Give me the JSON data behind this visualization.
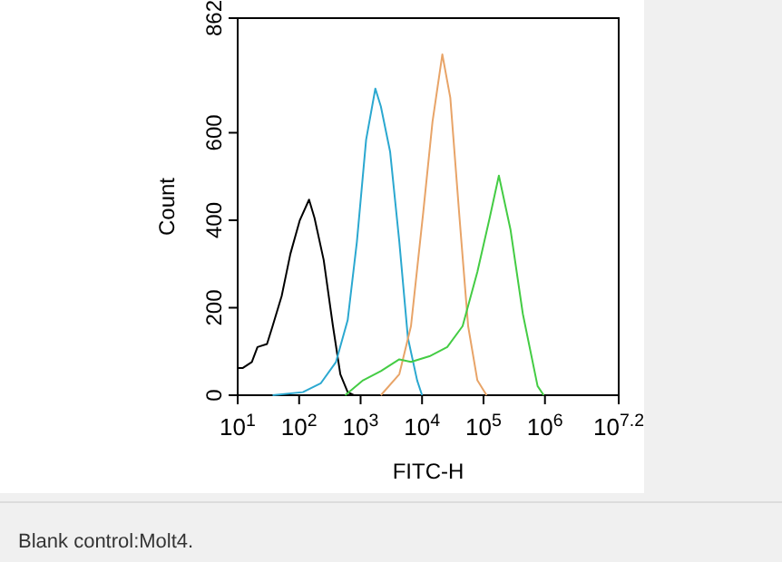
{
  "chart_data": {
    "type": "line",
    "xlabel": "FITC-H",
    "ylabel": "Count",
    "log": "x",
    "grid": false,
    "marker": "none",
    "line_style": "solid",
    "xlim": [
      10,
      15848932
    ],
    "xticks": [
      {
        "value": 10,
        "label": "10$^{1}$"
      },
      {
        "value": 100,
        "label": "10$^{2}$"
      },
      {
        "value": 1000,
        "label": "10$^{3}$"
      },
      {
        "value": 10000,
        "label": "10$^{4}$"
      },
      {
        "value": 100000,
        "label": "10$^{5}$"
      },
      {
        "value": 1000000,
        "label": "10$^{6}$"
      },
      {
        "value": 15848932,
        "label": "10$^{7.2}$"
      }
    ],
    "ylim": [
      0,
      862
    ],
    "yticks": [
      0,
      200,
      400,
      600,
      862
    ],
    "series": [
      {
        "color": "#000000",
        "x": [
          10,
          12,
          17,
          21,
          30,
          37,
          52,
          72,
          102,
          145,
          178,
          251,
          355,
          468,
          617,
          776
        ],
        "values": [
          62,
          62,
          76,
          110,
          117,
          158,
          227,
          323,
          399,
          447,
          405,
          309,
          158,
          48,
          7,
          0
        ]
      },
      {
        "color": "#2ba8d0",
        "x": [
          37,
          115,
          224,
          398,
          617,
          871,
          1230,
          1738,
          2138,
          3020,
          4266,
          5888,
          8318,
          10000
        ],
        "values": [
          0,
          7,
          27,
          76,
          172,
          351,
          584,
          701,
          660,
          557,
          351,
          131,
          34,
          0
        ]
      },
      {
        "color": "#e8a468",
        "x": [
          2138,
          4266,
          6607,
          10471,
          14791,
          21380,
          28840,
          40738,
          56234,
          79433,
          112202
        ],
        "values": [
          0,
          48,
          158,
          419,
          625,
          779,
          680,
          405,
          158,
          34,
          0
        ]
      },
      {
        "color": "#44cc44",
        "x": [
          562,
          1096,
          2138,
          4266,
          6607,
          13183,
          25704,
          45709,
          79433,
          125893,
          177828,
          275423,
          436516,
          758578,
          954993
        ],
        "values": [
          0,
          34,
          55,
          82,
          76,
          89,
          110,
          158,
          282,
          405,
          502,
          378,
          186,
          21,
          0
        ]
      }
    ],
    "annotations": [
      "Blank control:Molt4."
    ]
  }
}
